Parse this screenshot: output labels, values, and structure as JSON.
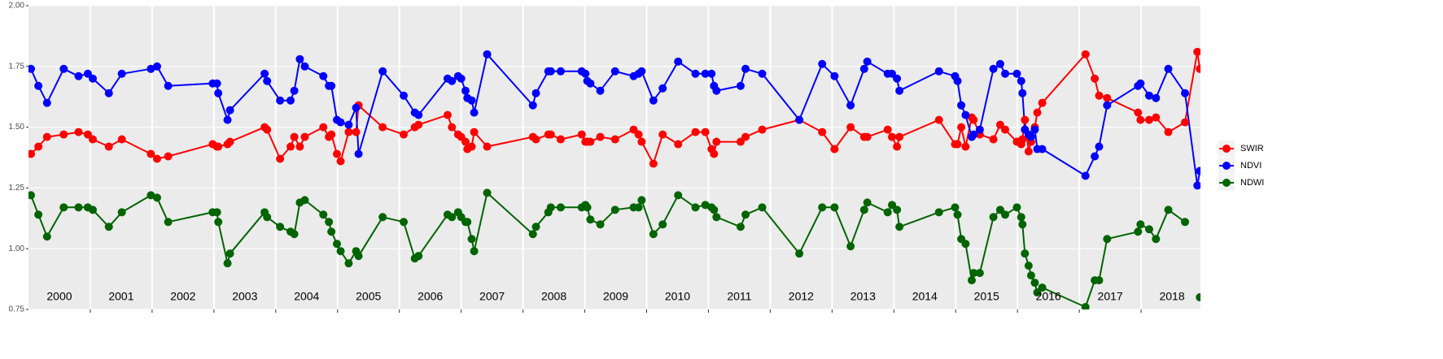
{
  "chart_data": {
    "type": "line",
    "xlim": [
      2000,
      2018.96
    ],
    "ylim": [
      0.75,
      2.0
    ],
    "yticks": [
      {
        "value": 0.75,
        "label": "0.75"
      },
      {
        "value": 1.0,
        "label": "1.00"
      },
      {
        "value": 1.25,
        "label": "1.25"
      },
      {
        "value": 1.5,
        "label": "1.50"
      },
      {
        "value": 1.75,
        "label": "1.75"
      },
      {
        "value": 2.0,
        "label": "2.00"
      }
    ],
    "xticks": [
      2001,
      2002,
      2003,
      2004,
      2005,
      2006,
      2007,
      2008,
      2009,
      2010,
      2011,
      2012,
      2013,
      2014,
      2015,
      2016,
      2017,
      2018
    ],
    "year_labels": [
      {
        "value": 2000.5,
        "label": "2000"
      },
      {
        "value": 2001.5,
        "label": "2001"
      },
      {
        "value": 2002.5,
        "label": "2002"
      },
      {
        "value": 2003.5,
        "label": "2003"
      },
      {
        "value": 2004.5,
        "label": "2004"
      },
      {
        "value": 2005.5,
        "label": "2005"
      },
      {
        "value": 2006.5,
        "label": "2006"
      },
      {
        "value": 2007.5,
        "label": "2007"
      },
      {
        "value": 2008.5,
        "label": "2008"
      },
      {
        "value": 2009.5,
        "label": "2009"
      },
      {
        "value": 2010.5,
        "label": "2010"
      },
      {
        "value": 2011.5,
        "label": "2011"
      },
      {
        "value": 2012.5,
        "label": "2012"
      },
      {
        "value": 2013.5,
        "label": "2013"
      },
      {
        "value": 2014.5,
        "label": "2014"
      },
      {
        "value": 2015.5,
        "label": "2015"
      },
      {
        "value": 2016.5,
        "label": "2016"
      },
      {
        "value": 2017.5,
        "label": "2017"
      },
      {
        "value": 2018.5,
        "label": "2018"
      }
    ],
    "grid": true,
    "legend": "right",
    "x": [
      2000.04,
      2000.16,
      2000.3,
      2000.57,
      2000.81,
      2000.96,
      2001.04,
      2001.3,
      2001.51,
      2001.98,
      2002.08,
      2002.26,
      2002.98,
      2003.05,
      2003.07,
      2003.22,
      2003.26,
      2003.82,
      2003.86,
      2004.07,
      2004.24,
      2004.3,
      2004.39,
      2004.47,
      2004.77,
      2004.86,
      2004.9,
      2004.99,
      2005.05,
      2005.18,
      2005.3,
      2005.34,
      2005.73,
      2006.07,
      2006.25,
      2006.31,
      2006.78,
      2006.85,
      2006.95,
      2007.0,
      2007.07,
      2007.1,
      2007.17,
      2007.21,
      2007.42,
      2008.16,
      2008.21,
      2008.41,
      2008.45,
      2008.61,
      2008.95,
      2009.01,
      2009.04,
      2009.09,
      2009.25,
      2009.49,
      2009.79,
      2009.87,
      2009.92,
      2010.11,
      2010.26,
      2010.51,
      2010.79,
      2010.95,
      2011.05,
      2011.09,
      2011.13,
      2011.52,
      2011.6,
      2011.87,
      2012.47,
      2012.84,
      2013.04,
      2013.3,
      2013.52,
      2013.57,
      2013.9,
      2013.97,
      2014.05,
      2014.09,
      2014.73,
      2014.99,
      2015.03,
      2015.09,
      2015.16,
      2015.26,
      2015.29,
      2015.39,
      2015.61,
      2015.72,
      2015.8,
      2015.99,
      2016.06,
      2016.08,
      2016.12,
      2016.18,
      2016.22,
      2016.28,
      2016.32,
      2016.4,
      2017.1,
      2017.25,
      2017.32,
      2017.45,
      2017.95,
      2017.99,
      2018.13,
      2018.24,
      2018.44,
      2018.71,
      2018.91,
      2018.95
    ],
    "series": [
      {
        "name": "SWIR",
        "color": "#ff0000",
        "values": [
          1.39,
          1.42,
          1.46,
          1.47,
          1.48,
          1.47,
          1.45,
          1.42,
          1.45,
          1.39,
          1.37,
          1.38,
          1.43,
          1.42,
          1.42,
          1.43,
          1.44,
          1.5,
          1.49,
          1.37,
          1.42,
          1.46,
          1.42,
          1.46,
          1.5,
          1.46,
          1.47,
          1.39,
          1.36,
          1.48,
          1.48,
          1.59,
          1.5,
          1.47,
          1.5,
          1.51,
          1.55,
          1.5,
          1.47,
          1.46,
          1.44,
          1.41,
          1.42,
          1.48,
          1.42,
          1.46,
          1.45,
          1.47,
          1.47,
          1.45,
          1.47,
          1.44,
          1.44,
          1.44,
          1.46,
          1.45,
          1.49,
          1.47,
          1.44,
          1.35,
          1.47,
          1.43,
          1.48,
          1.48,
          1.41,
          1.39,
          1.44,
          1.44,
          1.46,
          1.49,
          1.53,
          1.48,
          1.41,
          1.5,
          1.46,
          1.46,
          1.49,
          1.46,
          1.42,
          1.46,
          1.53,
          1.43,
          1.43,
          1.5,
          1.42,
          1.54,
          1.53,
          1.47,
          1.45,
          1.51,
          1.49,
          1.44,
          1.43,
          1.45,
          1.53,
          1.4,
          1.44,
          1.5,
          1.56,
          1.6,
          1.8,
          1.7,
          1.63,
          1.62,
          1.56,
          1.53,
          1.53,
          1.54,
          1.48,
          1.52,
          1.81,
          1.74
        ]
      },
      {
        "name": "NDVI",
        "color": "#0000ff",
        "values": [
          1.74,
          1.67,
          1.6,
          1.74,
          1.71,
          1.72,
          1.7,
          1.64,
          1.72,
          1.74,
          1.75,
          1.67,
          1.68,
          1.68,
          1.64,
          1.53,
          1.57,
          1.72,
          1.69,
          1.61,
          1.61,
          1.65,
          1.78,
          1.75,
          1.71,
          1.67,
          1.67,
          1.53,
          1.52,
          1.51,
          1.58,
          1.39,
          1.73,
          1.63,
          1.56,
          1.55,
          1.7,
          1.69,
          1.71,
          1.7,
          1.65,
          1.62,
          1.61,
          1.56,
          1.8,
          1.59,
          1.64,
          1.73,
          1.73,
          1.73,
          1.73,
          1.72,
          1.69,
          1.68,
          1.65,
          1.73,
          1.71,
          1.72,
          1.73,
          1.61,
          1.66,
          1.77,
          1.72,
          1.72,
          1.72,
          1.67,
          1.65,
          1.67,
          1.74,
          1.72,
          1.53,
          1.76,
          1.71,
          1.59,
          1.74,
          1.77,
          1.72,
          1.72,
          1.7,
          1.65,
          1.73,
          1.71,
          1.69,
          1.59,
          1.55,
          1.46,
          1.47,
          1.49,
          1.74,
          1.76,
          1.72,
          1.72,
          1.69,
          1.64,
          1.49,
          1.47,
          1.46,
          1.49,
          1.41,
          1.41,
          1.3,
          1.38,
          1.42,
          1.59,
          1.67,
          1.68,
          1.63,
          1.62,
          1.74,
          1.64,
          1.26,
          1.32
        ]
      },
      {
        "name": "NDWI",
        "color": "#006400",
        "values": [
          1.22,
          1.14,
          1.05,
          1.17,
          1.17,
          1.17,
          1.16,
          1.09,
          1.15,
          1.22,
          1.21,
          1.11,
          1.15,
          1.15,
          1.11,
          0.94,
          0.98,
          1.15,
          1.13,
          1.09,
          1.07,
          1.06,
          1.19,
          1.2,
          1.14,
          1.11,
          1.07,
          1.02,
          0.99,
          0.94,
          0.99,
          0.97,
          1.13,
          1.11,
          0.96,
          0.97,
          1.14,
          1.13,
          1.15,
          1.13,
          1.11,
          1.11,
          1.04,
          0.99,
          1.23,
          1.06,
          1.09,
          1.15,
          1.17,
          1.17,
          1.17,
          1.18,
          1.17,
          1.12,
          1.1,
          1.16,
          1.17,
          1.17,
          1.2,
          1.06,
          1.1,
          1.22,
          1.17,
          1.18,
          1.17,
          1.16,
          1.13,
          1.09,
          1.14,
          1.17,
          0.98,
          1.17,
          1.17,
          1.01,
          1.16,
          1.19,
          1.15,
          1.18,
          1.16,
          1.09,
          1.15,
          1.17,
          1.14,
          1.04,
          1.02,
          0.87,
          0.9,
          0.9,
          1.13,
          1.16,
          1.14,
          1.17,
          1.13,
          1.1,
          0.98,
          0.93,
          0.89,
          0.86,
          0.82,
          0.84,
          0.76,
          0.87,
          0.87,
          1.04,
          1.07,
          1.1,
          1.08,
          1.04,
          1.16,
          1.11,
          null,
          0.8
        ]
      }
    ]
  }
}
